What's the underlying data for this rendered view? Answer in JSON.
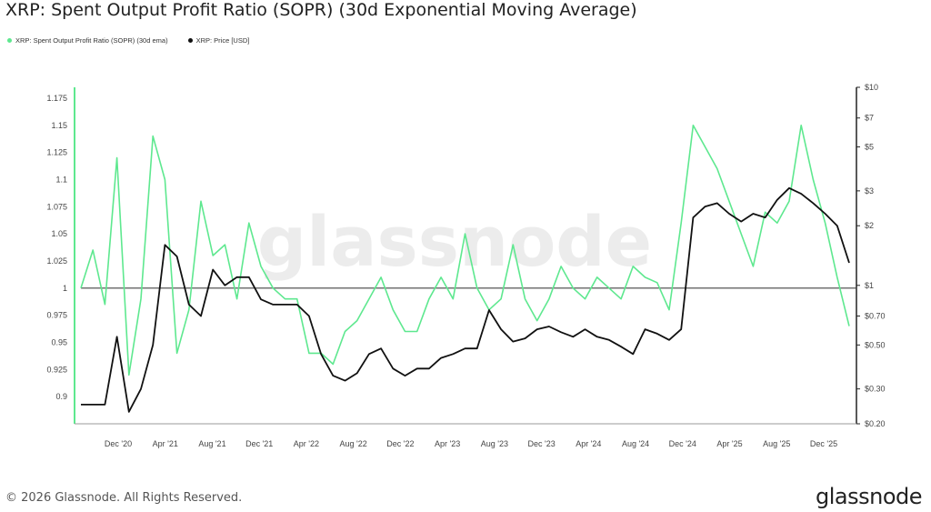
{
  "title": "XRP: Spent Output Profit Ratio (SOPR) (30d Exponential Moving Average)",
  "footer": {
    "copyright": "© 2026 Glassnode. All Rights Reserved.",
    "brand": "glassnode"
  },
  "watermark": "glassnode",
  "colors": {
    "sopr": "#5ee88f",
    "price": "#111111",
    "baseline": "#444444",
    "axis": "#999999"
  },
  "chart_data": {
    "type": "line",
    "title": "XRP: Spent Output Profit Ratio (SOPR) (30d Exponential Moving Average)",
    "legend_position": "top-left",
    "grid": false,
    "x_tick_labels": [
      "Dec '20",
      "Apr '21",
      "Aug '21",
      "Dec '21",
      "Apr '22",
      "Aug '22",
      "Dec '22",
      "Apr '23",
      "Aug '23",
      "Dec '23",
      "Apr '24",
      "Aug '24",
      "Dec '24",
      "Apr '25",
      "Aug '25",
      "Dec '25"
    ],
    "y_left": {
      "ticks": [
        0.9,
        0.925,
        0.95,
        0.975,
        1,
        1.025,
        1.05,
        1.075,
        1.1,
        1.125,
        1.15,
        1.175
      ],
      "tick_labels": [
        "0.9",
        "0.925",
        "0.95",
        "0.975",
        "1",
        "1.025",
        "1.05",
        "1.075",
        "1.1",
        "1.125",
        "1.15",
        "1.175"
      ],
      "range": [
        0.875,
        1.185
      ]
    },
    "y_right": {
      "scale": "log",
      "ticks": [
        0.2,
        0.3,
        0.5,
        0.7,
        1,
        2,
        3,
        5,
        7,
        10
      ],
      "tick_labels": [
        "$0.20",
        "$0.30",
        "$0.50",
        "$0.70",
        "$1",
        "$2",
        "$3",
        "$5",
        "$7",
        "$10"
      ],
      "range": [
        0.2,
        10
      ]
    },
    "baseline": 1,
    "x": [
      "2020-09",
      "2020-10",
      "2020-11",
      "2020-12",
      "2021-01",
      "2021-02",
      "2021-03",
      "2021-04",
      "2021-05",
      "2021-06",
      "2021-07",
      "2021-08",
      "2021-09",
      "2021-10",
      "2021-11",
      "2021-12",
      "2022-01",
      "2022-02",
      "2022-03",
      "2022-04",
      "2022-05",
      "2022-06",
      "2022-07",
      "2022-08",
      "2022-09",
      "2022-10",
      "2022-11",
      "2022-12",
      "2023-01",
      "2023-02",
      "2023-03",
      "2023-04",
      "2023-05",
      "2023-06",
      "2023-07",
      "2023-08",
      "2023-09",
      "2023-10",
      "2023-11",
      "2023-12",
      "2024-01",
      "2024-02",
      "2024-03",
      "2024-04",
      "2024-05",
      "2024-06",
      "2024-07",
      "2024-08",
      "2024-09",
      "2024-10",
      "2024-11",
      "2024-12",
      "2025-01",
      "2025-02",
      "2025-03",
      "2025-04",
      "2025-05",
      "2025-06",
      "2025-07",
      "2025-08",
      "2025-09",
      "2025-10",
      "2025-11",
      "2025-12",
      "2026-01"
    ],
    "series": [
      {
        "name": "XRP: Spent Output Profit Ratio (SOPR) (30d ema)",
        "axis": "left",
        "color": "#5ee88f",
        "values": [
          1.0,
          1.035,
          0.985,
          1.12,
          0.92,
          0.99,
          1.14,
          1.1,
          0.94,
          0.98,
          1.08,
          1.03,
          1.04,
          0.99,
          1.06,
          1.02,
          1.0,
          0.99,
          0.99,
          0.94,
          0.94,
          0.93,
          0.96,
          0.97,
          0.99,
          1.01,
          0.98,
          0.96,
          0.96,
          0.99,
          1.01,
          0.99,
          1.05,
          1.0,
          0.98,
          0.99,
          1.04,
          0.99,
          0.97,
          0.99,
          1.02,
          1.0,
          0.99,
          1.01,
          1.0,
          0.99,
          1.02,
          1.01,
          1.005,
          0.98,
          1.06,
          1.15,
          1.13,
          1.11,
          1.08,
          1.05,
          1.02,
          1.07,
          1.06,
          1.08,
          1.15,
          1.1,
          1.06,
          1.01,
          0.965
        ]
      },
      {
        "name": "XRP: Price [USD]",
        "axis": "right",
        "color": "#111111",
        "values": [
          0.25,
          0.25,
          0.25,
          0.55,
          0.23,
          0.3,
          0.5,
          1.6,
          1.4,
          0.8,
          0.7,
          1.2,
          1.0,
          1.1,
          1.1,
          0.85,
          0.8,
          0.8,
          0.8,
          0.7,
          0.45,
          0.35,
          0.33,
          0.36,
          0.45,
          0.48,
          0.38,
          0.35,
          0.38,
          0.38,
          0.43,
          0.45,
          0.48,
          0.48,
          0.75,
          0.6,
          0.52,
          0.54,
          0.6,
          0.62,
          0.58,
          0.55,
          0.6,
          0.55,
          0.53,
          0.49,
          0.45,
          0.6,
          0.57,
          0.53,
          0.6,
          2.2,
          2.5,
          2.6,
          2.3,
          2.1,
          2.3,
          2.2,
          2.7,
          3.1,
          2.9,
          2.6,
          2.3,
          2.0,
          1.3
        ]
      }
    ]
  }
}
